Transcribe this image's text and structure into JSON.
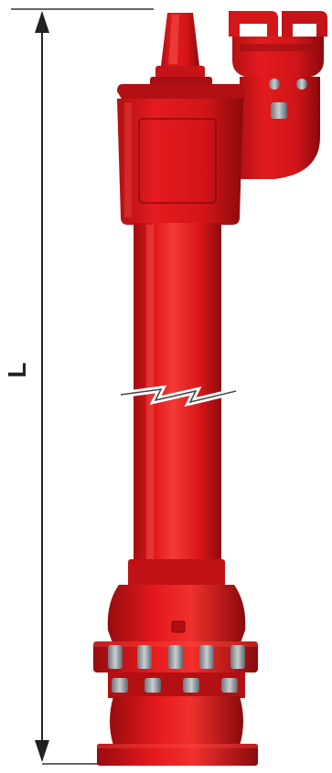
{
  "dimension": {
    "label": "L"
  },
  "colors": {
    "body": "#e0181b",
    "body_dark": "#a80f12",
    "body_shadow": "#7d0a0c",
    "body_highlight": "#ff5a55",
    "bolt": "#9aa0a6",
    "line": "#222222"
  },
  "parts": {
    "top_cap": "conical-cap",
    "outlet": "claw-coupling-outlet",
    "head": "hydrant-head",
    "column": "standpipe-column",
    "break_mark": "length-break",
    "base": "flanged-base"
  }
}
